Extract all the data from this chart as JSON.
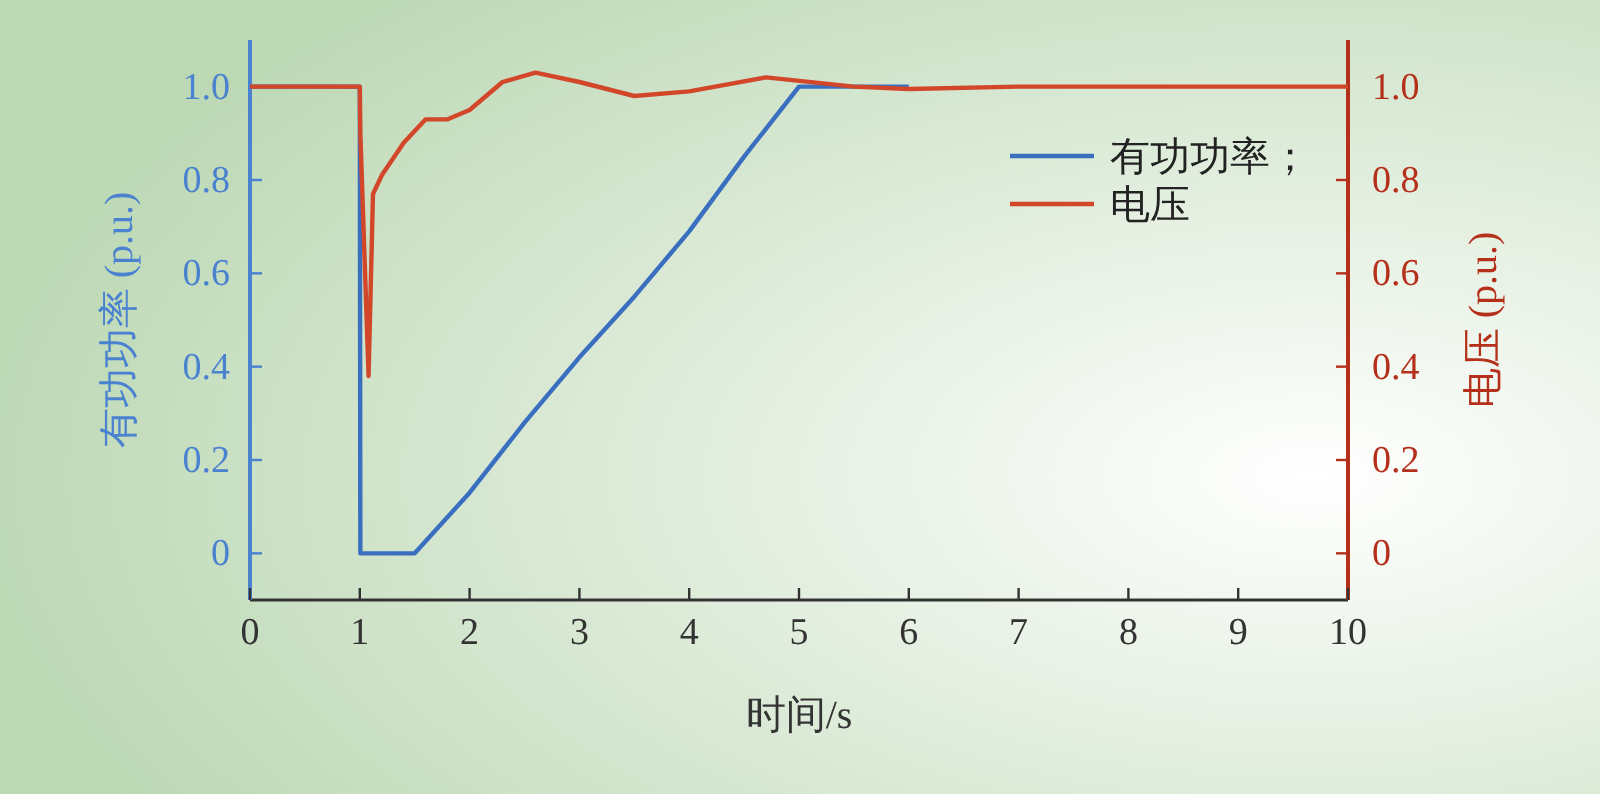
{
  "chart_data": {
    "type": "line",
    "xlabel": "时间/s",
    "ylabel": "有功功率 (p.u.)",
    "y2label": "电压 (p.u.)",
    "xlim": [
      0,
      10
    ],
    "xticks": [
      0,
      1,
      2,
      3,
      4,
      5,
      6,
      7,
      8,
      9,
      10
    ],
    "ylim": [
      -0.1,
      1.1
    ],
    "yticks": [
      0,
      {
        "value": 0.2,
        "label": "0.2"
      },
      {
        "value": 0.4,
        "label": "0.4"
      },
      {
        "value": 0.6,
        "label": "0.6"
      },
      {
        "value": 0.8,
        "label": "0.8"
      },
      {
        "value": 1,
        "label": "1.0"
      }
    ],
    "y2lim": [
      -0.1,
      1.1
    ],
    "y2ticks": [
      0,
      {
        "value": 0.2,
        "label": "0.2"
      },
      {
        "value": 0.4,
        "label": "0.4"
      },
      {
        "value": 0.6,
        "label": "0.6"
      },
      {
        "value": 0.8,
        "label": "0.8"
      },
      {
        "value": 1,
        "label": "1.0"
      }
    ],
    "legend": "top right",
    "line_style": "solid",
    "marker": "none",
    "series": [
      {
        "name": "有功功率；",
        "color": "#3a6fc0",
        "x": [
          0,
          1,
          1.005,
          1.5,
          2,
          2.5,
          3,
          3.5,
          4,
          4.5,
          5,
          6
        ],
        "values": [
          1,
          1,
          0,
          0,
          0.13,
          0.28,
          0.42,
          0.55,
          0.69,
          0.85,
          1,
          1
        ]
      },
      {
        "name": "电压",
        "color": "#d2462a",
        "axis": "y2",
        "x": [
          0,
          1,
          1.005,
          1.08,
          1.12,
          1.2,
          1.4,
          1.6,
          1.8,
          2,
          2.3,
          2.6,
          3,
          3.5,
          4,
          4.7,
          5.5,
          6,
          7,
          8,
          9,
          10
        ],
        "values": [
          1,
          1,
          0.9,
          0.38,
          0.77,
          0.81,
          0.88,
          0.93,
          0.93,
          0.95,
          1.01,
          1.03,
          1.01,
          0.98,
          0.99,
          1.02,
          1,
          0.995,
          1,
          1,
          1,
          1
        ]
      }
    ]
  }
}
